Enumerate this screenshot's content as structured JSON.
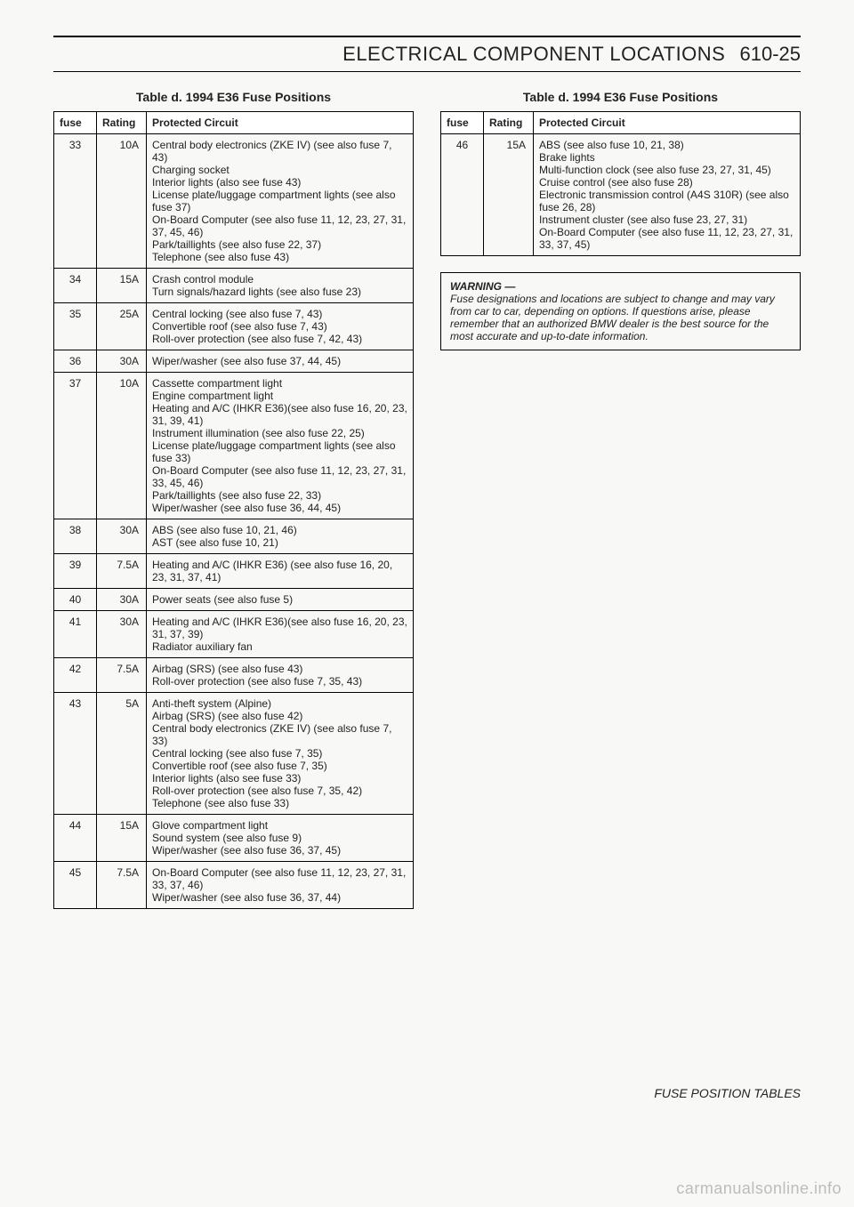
{
  "header": {
    "section_title": "ELECTRICAL COMPONENT LOCATIONS",
    "page_number": "610-25"
  },
  "left_table": {
    "title": "Table d. 1994 E36 Fuse Positions",
    "columns": [
      "fuse",
      "Rating",
      "Protected Circuit"
    ],
    "rows": [
      {
        "fuse": "33",
        "rating": "10A",
        "circuit": "Central body electronics (ZKE IV) (see also fuse 7, 43)\nCharging socket\nInterior lights (also see fuse 43)\nLicense plate/luggage compartment lights (see also fuse 37)\nOn-Board Computer (see also fuse 11, 12, 23, 27, 31, 37, 45, 46)\nPark/taillights (see also fuse 22, 37)\nTelephone (see also fuse 43)"
      },
      {
        "fuse": "34",
        "rating": "15A",
        "circuit": "Crash control module\nTurn signals/hazard lights (see also fuse 23)"
      },
      {
        "fuse": "35",
        "rating": "25A",
        "circuit": "Central locking (see also fuse 7, 43)\nConvertible roof (see also fuse 7, 43)\nRoll-over protection (see also fuse 7, 42, 43)"
      },
      {
        "fuse": "36",
        "rating": "30A",
        "circuit": "Wiper/washer (see also fuse 37, 44, 45)"
      },
      {
        "fuse": "37",
        "rating": "10A",
        "circuit": "Cassette compartment light\nEngine compartment light\nHeating and A/C (IHKR E36)(see also fuse 16, 20, 23, 31, 39, 41)\nInstrument illumination (see also fuse 22, 25)\nLicense plate/luggage compartment lights (see also fuse 33)\nOn-Board Computer (see also fuse 11, 12, 23, 27, 31, 33, 45, 46)\nPark/taillights (see also fuse 22, 33)\nWiper/washer (see also fuse 36, 44, 45)"
      },
      {
        "fuse": "38",
        "rating": "30A",
        "circuit": "ABS (see also fuse 10, 21, 46)\nAST (see also fuse 10, 21)"
      },
      {
        "fuse": "39",
        "rating": "7.5A",
        "circuit": "Heating and A/C (IHKR E36) (see also fuse 16, 20, 23, 31, 37, 41)"
      },
      {
        "fuse": "40",
        "rating": "30A",
        "circuit": "Power seats (see also fuse 5)"
      },
      {
        "fuse": "41",
        "rating": "30A",
        "circuit": "Heating and A/C (IHKR E36)(see also fuse 16, 20, 23, 31, 37, 39)\nRadiator auxiliary fan"
      },
      {
        "fuse": "42",
        "rating": "7.5A",
        "circuit": "Airbag (SRS) (see also fuse 43)\nRoll-over protection (see also fuse 7, 35, 43)"
      },
      {
        "fuse": "43",
        "rating": "5A",
        "circuit": "Anti-theft system (Alpine)\nAirbag (SRS) (see also fuse 42)\nCentral body electronics (ZKE IV) (see also fuse 7, 33)\nCentral locking (see also fuse 7, 35)\nConvertible roof (see also fuse 7, 35)\nInterior lights (also see fuse 33)\nRoll-over protection (see also fuse 7, 35, 42)\nTelephone (see also fuse 33)"
      },
      {
        "fuse": "44",
        "rating": "15A",
        "circuit": "Glove compartment light\nSound system (see also fuse 9)\nWiper/washer (see also fuse 36, 37, 45)"
      },
      {
        "fuse": "45",
        "rating": "7.5A",
        "circuit": "On-Board Computer (see also fuse 11, 12, 23, 27, 31, 33, 37, 46)\nWiper/washer (see also fuse 36, 37, 44)"
      }
    ]
  },
  "right_table": {
    "title": "Table d. 1994 E36 Fuse Positions",
    "columns": [
      "fuse",
      "Rating",
      "Protected Circuit"
    ],
    "rows": [
      {
        "fuse": "46",
        "rating": "15A",
        "circuit": "ABS (see also fuse 10, 21, 38)\nBrake lights\nMulti-function clock (see also fuse 23, 27, 31, 45)\nCruise control (see also fuse 28)\nElectronic transmission control (A4S 310R) (see also fuse 26, 28)\nInstrument cluster (see also fuse 23, 27, 31)\nOn-Board Computer (see also fuse 11, 12, 23, 27, 31, 33, 37, 45)"
      }
    ]
  },
  "warning": {
    "title": "WARNING —",
    "body": "Fuse designations and locations are subject to change and may vary from car to car, depending on options. If questions arise, please remember that an authorized BMW dealer is the best source for the most accurate and up-to-date information."
  },
  "footer_label": "FUSE POSITION TABLES",
  "watermark": "carmanualsonline.info"
}
